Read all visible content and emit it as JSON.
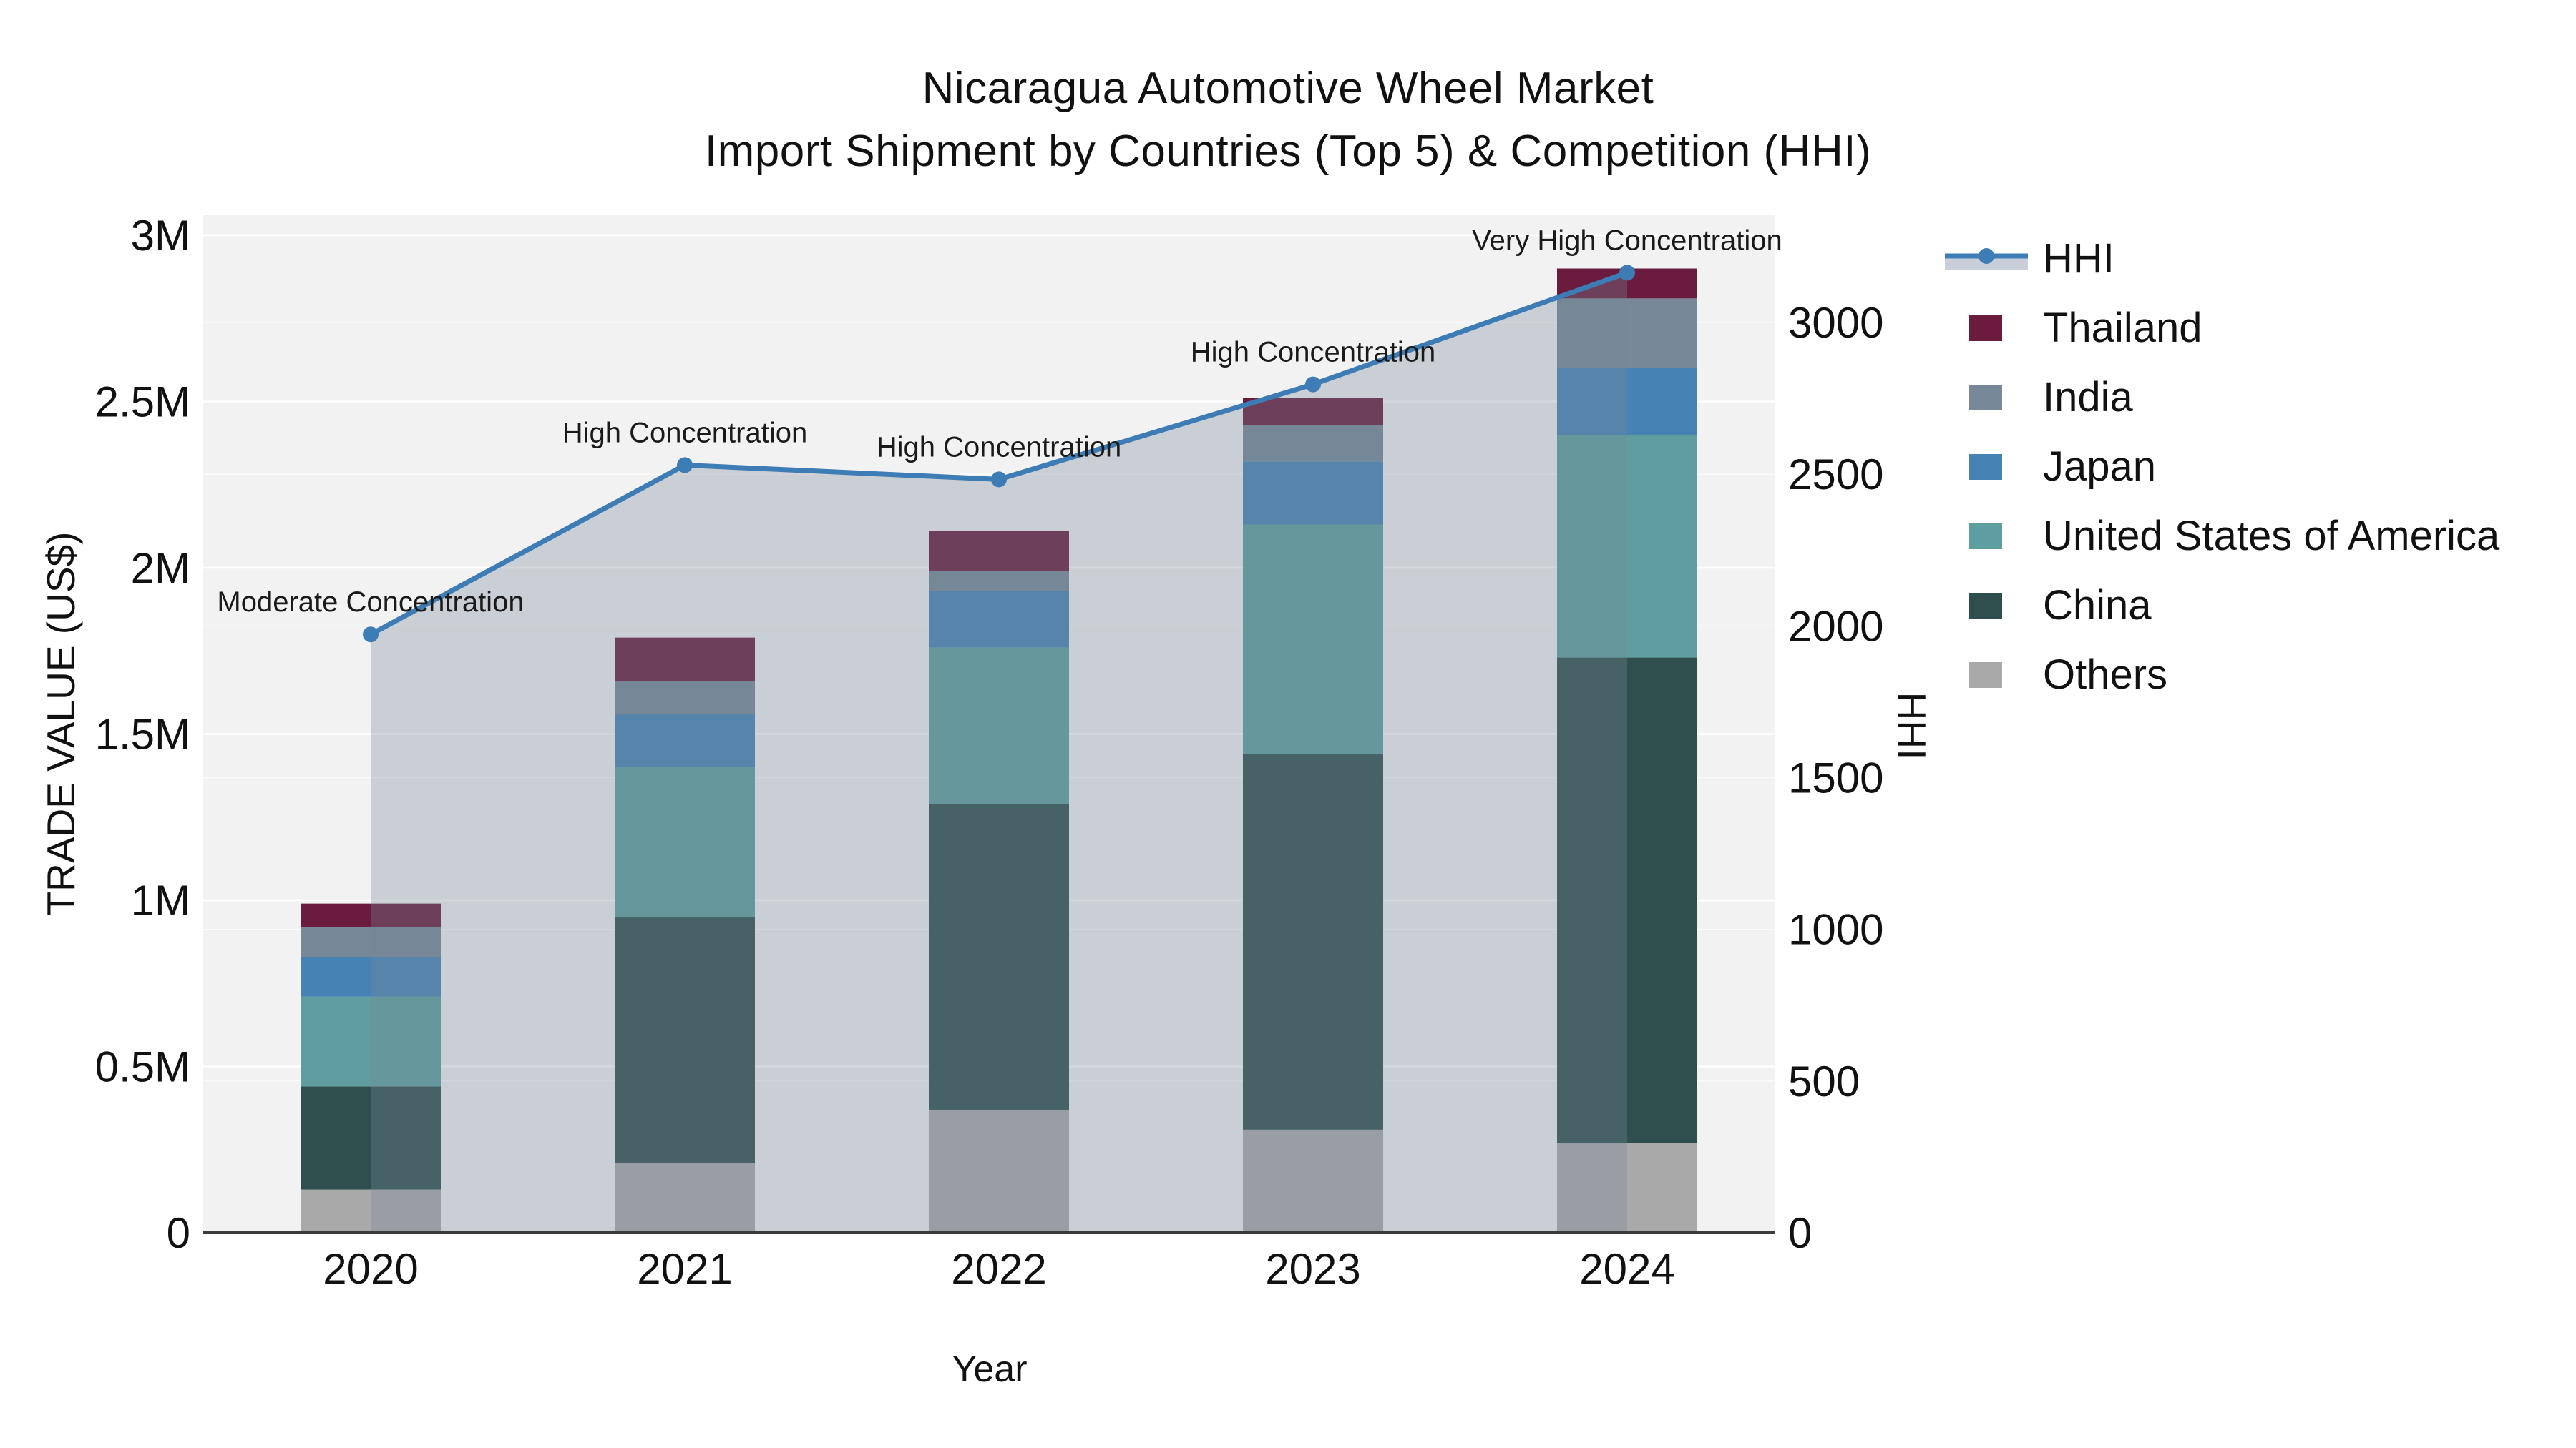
{
  "title": {
    "line1": "Nicaragua Automotive Wheel Market",
    "line2": "Import Shipment by Countries (Top 5) & Competition (HHI)"
  },
  "axes": {
    "left": {
      "title": "TRADE VALUE (US$)",
      "tick_labels": [
        "0",
        "0.5M",
        "1M",
        "1.5M",
        "2M",
        "2.5M",
        "3M"
      ],
      "tick_values_musd": [
        0,
        0.5,
        1,
        1.5,
        2,
        2.5,
        3
      ]
    },
    "right": {
      "title": "HHI",
      "tick_labels": [
        "0",
        "500",
        "1000",
        "1500",
        "2000",
        "2500",
        "3000"
      ],
      "tick_values": [
        0,
        500,
        1000,
        1500,
        2000,
        2500,
        3000
      ]
    },
    "x": {
      "title": "Year",
      "tick_labels": [
        "2020",
        "2021",
        "2022",
        "2023",
        "2024"
      ]
    }
  },
  "legend": {
    "items": [
      {
        "label": "HHI",
        "type": "line",
        "color": "#3E7CB6"
      },
      {
        "label": "Thailand",
        "type": "swatch",
        "color": "#6B1C3E"
      },
      {
        "label": "India",
        "type": "swatch",
        "color": "#778899"
      },
      {
        "label": "Japan",
        "type": "swatch",
        "color": "#4682B4"
      },
      {
        "label": "United States of America",
        "type": "swatch",
        "color": "#5F9EA0"
      },
      {
        "label": "China",
        "type": "swatch",
        "color": "#2F4F4F"
      },
      {
        "label": "Others",
        "type": "swatch",
        "color": "#A9A9A9"
      }
    ]
  },
  "chart_data": {
    "type": "bar",
    "subtype": "stacked bars (left axis, trade value) + HHI line with area fill (right axis)",
    "categories": [
      "2020",
      "2021",
      "2022",
      "2023",
      "2024"
    ],
    "stack_order_bottom_to_top": [
      "Others",
      "China",
      "United States of America",
      "Japan",
      "India",
      "Thailand"
    ],
    "series": [
      {
        "name": "Thailand",
        "color": "#6B1C3E",
        "values_musd": [
          0.07,
          0.13,
          0.12,
          0.08,
          0.09
        ]
      },
      {
        "name": "India",
        "color": "#778899",
        "values_musd": [
          0.09,
          0.1,
          0.06,
          0.11,
          0.21
        ]
      },
      {
        "name": "Japan",
        "color": "#4682B4",
        "values_musd": [
          0.12,
          0.16,
          0.17,
          0.19,
          0.2
        ]
      },
      {
        "name": "United States of America",
        "color": "#5F9EA0",
        "values_musd": [
          0.27,
          0.45,
          0.47,
          0.69,
          0.67
        ]
      },
      {
        "name": "China",
        "color": "#2F4F4F",
        "values_musd": [
          0.31,
          0.74,
          0.92,
          1.13,
          1.46
        ]
      },
      {
        "name": "Others",
        "color": "#A9A9A9",
        "values_musd": [
          0.13,
          0.21,
          0.37,
          0.31,
          0.27
        ]
      }
    ],
    "bar_totals_musd": [
      0.99,
      1.79,
      2.11,
      2.51,
      2.9
    ],
    "line_series": {
      "name": "HHI",
      "color": "#3E7CB6",
      "fill_color": "rgba(119,136,153,0.33)",
      "values": [
        1972,
        2530,
        2483,
        2796,
        3164
      ],
      "annotations": [
        "Moderate Concentration",
        "High Concentration",
        "High Concentration",
        "High Concentration",
        "Very High Concentration"
      ]
    },
    "title": "Nicaragua Automotive Wheel Market — Import Shipment by Countries (Top 5) & Competition (HHI)",
    "xlabel": "Year",
    "ylabel_left": "TRADE VALUE (US$)",
    "ylabel_right": "HHI",
    "ylim_left_musd": [
      0,
      3.06
    ],
    "ylim_right": [
      0,
      3360
    ],
    "grid": true,
    "legend_position": "right",
    "plot_background": "#f2f2f2"
  }
}
